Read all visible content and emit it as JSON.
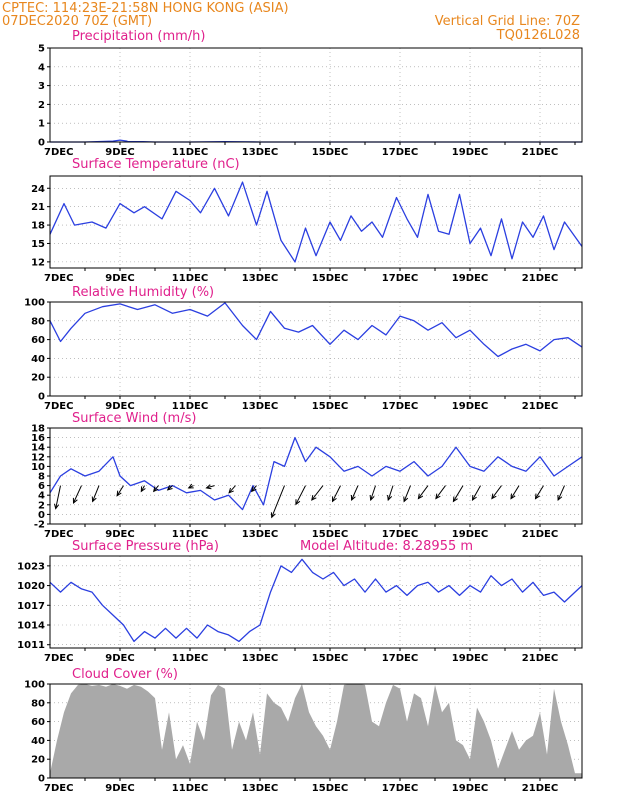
{
  "header": {
    "station_line": "CPTEC:   114:23E-21:58N   HONG KONG (ASIA)",
    "date_line": "07DEC2020 70Z (GMT)",
    "grid_line": "Vertical Grid Line: 70Z",
    "code": "TQ0126L028"
  },
  "x_ticks": [
    "7DEC",
    "9DEC",
    "11DEC",
    "13DEC",
    "15DEC",
    "17DEC",
    "19DEC",
    "21DEC"
  ],
  "colors": {
    "header": "#e8871e",
    "title": "#e0208c",
    "line": "#2b3fe0",
    "cloud_fill": "#a9a9a9",
    "grid": "#999999",
    "wind_arrow": "#000000"
  },
  "chart_data": [
    {
      "type": "line",
      "title": "Precipitation (mm/h)",
      "ylim": [
        0,
        5
      ],
      "yticks": [
        0,
        1,
        2,
        3,
        4,
        5
      ],
      "x": [
        7,
        8,
        8.8,
        9,
        9.2,
        10,
        11,
        12,
        13,
        15,
        17,
        19,
        21,
        22.2
      ],
      "values": [
        0,
        0,
        0.05,
        0.1,
        0.05,
        0,
        0,
        0.02,
        0,
        0,
        0,
        0,
        0,
        0
      ]
    },
    {
      "type": "line",
      "title": "Surface Temperature (nC)",
      "ylim": [
        11,
        26
      ],
      "yticks": [
        12,
        15,
        18,
        21,
        24
      ],
      "x": [
        7,
        7.4,
        7.7,
        8.2,
        8.6,
        9,
        9.4,
        9.7,
        10.2,
        10.6,
        11,
        11.3,
        11.7,
        12.1,
        12.5,
        12.9,
        13.2,
        13.6,
        14,
        14.3,
        14.6,
        15,
        15.3,
        15.6,
        15.9,
        16.2,
        16.5,
        16.9,
        17.2,
        17.5,
        17.8,
        18.1,
        18.4,
        18.7,
        19,
        19.3,
        19.6,
        19.9,
        20.2,
        20.5,
        20.8,
        21.1,
        21.4,
        21.7,
        22.2
      ],
      "values": [
        16.5,
        21.5,
        18,
        18.5,
        17.5,
        21.5,
        20,
        21,
        19,
        23.5,
        22,
        20,
        24,
        19.5,
        25,
        18,
        23.5,
        15.5,
        12,
        17.5,
        13,
        18.5,
        15.5,
        19.5,
        17,
        18.5,
        16,
        22.5,
        19,
        16,
        23,
        17,
        16.5,
        23,
        15,
        17.5,
        13,
        19,
        12.5,
        18.5,
        16,
        19.5,
        14,
        18.5,
        14.5
      ]
    },
    {
      "type": "line",
      "title": "Relative Humidity (%)",
      "ylim": [
        0,
        100
      ],
      "yticks": [
        0,
        20,
        40,
        60,
        80,
        100
      ],
      "x": [
        7,
        7.3,
        7.6,
        8,
        8.5,
        9,
        9.5,
        10,
        10.5,
        11,
        11.5,
        12,
        12.5,
        12.9,
        13.3,
        13.7,
        14.1,
        14.5,
        15,
        15.4,
        15.8,
        16.2,
        16.6,
        17,
        17.4,
        17.8,
        18.2,
        18.6,
        19,
        19.4,
        19.8,
        20.2,
        20.6,
        21,
        21.4,
        21.8,
        22.2
      ],
      "values": [
        80,
        58,
        72,
        88,
        95,
        98,
        92,
        97,
        88,
        92,
        85,
        99,
        75,
        60,
        90,
        72,
        68,
        75,
        55,
        70,
        60,
        75,
        65,
        85,
        80,
        70,
        78,
        62,
        70,
        55,
        42,
        50,
        55,
        48,
        60,
        62,
        52
      ]
    },
    {
      "type": "line",
      "title": "Surface Wind (m/s)",
      "ylim": [
        -2,
        18
      ],
      "yticks": [
        -2,
        0,
        2,
        4,
        6,
        8,
        10,
        12,
        14,
        16,
        18
      ],
      "x": [
        7,
        7.3,
        7.6,
        8,
        8.4,
        8.8,
        9,
        9.3,
        9.7,
        10.1,
        10.5,
        10.9,
        11.3,
        11.7,
        12.1,
        12.5,
        12.8,
        13.1,
        13.4,
        13.7,
        14,
        14.3,
        14.6,
        15,
        15.4,
        15.8,
        16.2,
        16.6,
        17,
        17.4,
        17.8,
        18.2,
        18.6,
        19,
        19.4,
        19.8,
        20.2,
        20.6,
        21,
        21.4,
        21.8,
        22.2
      ],
      "values": [
        4.5,
        8,
        9.5,
        8,
        9,
        12,
        8,
        6,
        7,
        5,
        6,
        4.5,
        5,
        3,
        4,
        1,
        6,
        2,
        11,
        10,
        16,
        11,
        14,
        12,
        9,
        10,
        8,
        10,
        9,
        11,
        8,
        10,
        14,
        10,
        9,
        12,
        10,
        9,
        12,
        8,
        10,
        12
      ],
      "vectors": [
        {
          "day": 7.3,
          "u": 1.5,
          "v": 8
        },
        {
          "day": 7.9,
          "u": 2.5,
          "v": 6
        },
        {
          "day": 8.4,
          "u": 2,
          "v": 5.5
        },
        {
          "day": 9.1,
          "u": 2,
          "v": 3.5
        },
        {
          "day": 9.7,
          "u": 1,
          "v": 2
        },
        {
          "day": 10.1,
          "u": 1.5,
          "v": 2
        },
        {
          "day": 10.5,
          "u": 1.5,
          "v": 1.5
        },
        {
          "day": 11.1,
          "u": 1.5,
          "v": 0.8
        },
        {
          "day": 11.7,
          "u": 2.5,
          "v": 0.8
        },
        {
          "day": 12.3,
          "u": 2,
          "v": 2.5
        },
        {
          "day": 12.9,
          "u": 1.5,
          "v": 2
        },
        {
          "day": 13.7,
          "u": 4,
          "v": 11
        },
        {
          "day": 14.3,
          "u": 3,
          "v": 6.5
        },
        {
          "day": 14.8,
          "u": 3.5,
          "v": 5
        },
        {
          "day": 15.3,
          "u": 2.5,
          "v": 5.5
        },
        {
          "day": 15.8,
          "u": 2,
          "v": 5
        },
        {
          "day": 16.3,
          "u": 1.5,
          "v": 5
        },
        {
          "day": 16.8,
          "u": 1.5,
          "v": 5
        },
        {
          "day": 17.3,
          "u": 2,
          "v": 5.5
        },
        {
          "day": 17.8,
          "u": 3,
          "v": 4.5
        },
        {
          "day": 18.3,
          "u": 3,
          "v": 4.5
        },
        {
          "day": 18.8,
          "u": 3,
          "v": 5.5
        },
        {
          "day": 19.3,
          "u": 2.5,
          "v": 5
        },
        {
          "day": 19.9,
          "u": 3,
          "v": 4.5
        },
        {
          "day": 20.4,
          "u": 2.5,
          "v": 4.5
        },
        {
          "day": 21.1,
          "u": 2.5,
          "v": 4.5
        },
        {
          "day": 21.7,
          "u": 2,
          "v": 5
        }
      ]
    },
    {
      "type": "line",
      "title": "Surface Pressure (hPa)",
      "annotation": "Model Altitude: 8.28955 m",
      "ylim": [
        1010.5,
        1024.5
      ],
      "yticks": [
        1011,
        1014,
        1017,
        1020,
        1023
      ],
      "x": [
        7,
        7.3,
        7.6,
        7.9,
        8.2,
        8.5,
        8.8,
        9.1,
        9.4,
        9.7,
        10,
        10.3,
        10.6,
        10.9,
        11.2,
        11.5,
        11.8,
        12.1,
        12.4,
        12.7,
        13,
        13.3,
        13.6,
        13.9,
        14.2,
        14.5,
        14.8,
        15.1,
        15.4,
        15.7,
        16,
        16.3,
        16.6,
        16.9,
        17.2,
        17.5,
        17.8,
        18.1,
        18.4,
        18.7,
        19,
        19.3,
        19.6,
        19.9,
        20.2,
        20.5,
        20.8,
        21.1,
        21.4,
        21.7,
        22,
        22.2
      ],
      "values": [
        1020.5,
        1019,
        1020.5,
        1019.5,
        1019,
        1017,
        1015.5,
        1014,
        1011.5,
        1013,
        1012,
        1013.5,
        1012,
        1013.5,
        1012,
        1014,
        1013,
        1012.5,
        1011.5,
        1013,
        1014,
        1019,
        1023,
        1022,
        1024,
        1022,
        1021,
        1022,
        1020,
        1021,
        1019,
        1021,
        1019,
        1020,
        1018.5,
        1020,
        1020.5,
        1019,
        1020,
        1018.5,
        1020,
        1019,
        1021.5,
        1020,
        1021,
        1019,
        1020.5,
        1018.5,
        1019,
        1017.5,
        1019,
        1020
      ]
    },
    {
      "type": "area",
      "title": "Cloud Cover (%)",
      "ylim": [
        0,
        100
      ],
      "yticks": [
        0,
        20,
        40,
        60,
        80,
        100
      ],
      "x": [
        7,
        7.2,
        7.4,
        7.6,
        7.8,
        8,
        8.2,
        8.4,
        8.6,
        8.8,
        9,
        9.2,
        9.4,
        9.6,
        9.8,
        10,
        10.2,
        10.4,
        10.6,
        10.8,
        11,
        11.2,
        11.4,
        11.6,
        11.8,
        12,
        12.2,
        12.4,
        12.6,
        12.8,
        13,
        13.2,
        13.4,
        13.6,
        13.8,
        14,
        14.2,
        14.4,
        14.6,
        14.8,
        15,
        15.2,
        15.4,
        15.6,
        15.8,
        16,
        16.2,
        16.4,
        16.6,
        16.8,
        17,
        17.2,
        17.4,
        17.6,
        17.8,
        18,
        18.2,
        18.4,
        18.6,
        18.8,
        19,
        19.2,
        19.4,
        19.6,
        19.8,
        20,
        20.2,
        20.4,
        20.6,
        20.8,
        21,
        21.2,
        21.4,
        21.6,
        21.8,
        22,
        22.2
      ],
      "values": [
        5,
        40,
        70,
        90,
        99,
        100,
        98,
        99,
        97,
        100,
        98,
        95,
        99,
        97,
        92,
        85,
        30,
        70,
        20,
        35,
        15,
        60,
        40,
        88,
        99,
        95,
        30,
        60,
        40,
        70,
        25,
        90,
        80,
        75,
        60,
        85,
        100,
        70,
        55,
        45,
        30,
        60,
        99,
        100,
        100,
        99,
        60,
        55,
        80,
        99,
        95,
        60,
        90,
        85,
        55,
        99,
        70,
        80,
        40,
        35,
        20,
        75,
        60,
        40,
        10,
        30,
        50,
        30,
        40,
        45,
        70,
        25,
        95,
        60,
        35,
        5,
        5
      ]
    }
  ]
}
